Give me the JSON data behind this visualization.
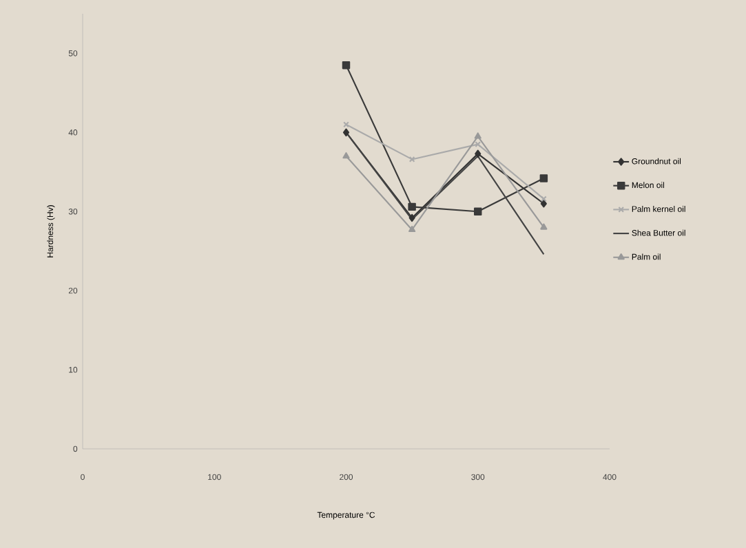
{
  "chart_data": {
    "type": "line",
    "xlabel": "Temperature °C",
    "ylabel": "Hardness (Hv)",
    "x": [
      200,
      250,
      300,
      350
    ],
    "series": [
      {
        "name": "Groundnut oil",
        "color": "#333333",
        "marker": "diamond",
        "values": [
          40,
          29.2,
          37.3,
          31
        ]
      },
      {
        "name": "Melon oil",
        "color": "#3a3a3a",
        "marker": "square",
        "values": [
          48.5,
          30.6,
          30,
          34.2
        ]
      },
      {
        "name": "Palm kernel oil",
        "color": "#aaaaaa",
        "marker": "cross",
        "values": [
          41,
          36.6,
          38.5,
          31.6
        ]
      },
      {
        "name": "Shea Butter oil",
        "color": "#444444",
        "marker": "none",
        "values": [
          40,
          29,
          37,
          24.6
        ]
      },
      {
        "name": "Palm oil",
        "color": "#999999",
        "marker": "triangle",
        "values": [
          37,
          27.7,
          39.5,
          28
        ]
      }
    ],
    "xlim": [
      0,
      400
    ],
    "xticks": [
      0,
      100,
      200,
      300,
      400
    ],
    "ylim": [
      0,
      55
    ],
    "yticks": [
      0,
      10,
      20,
      30,
      40,
      50
    ],
    "grid": false,
    "legend": "right"
  }
}
